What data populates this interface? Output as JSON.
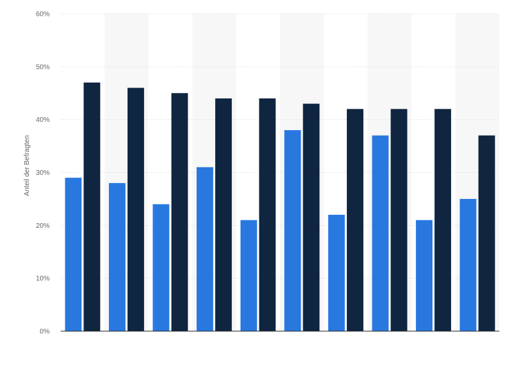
{
  "chart_data": {
    "type": "bar",
    "title": "",
    "xlabel": "",
    "ylabel": "Anteil der Befragten",
    "ylim": [
      0,
      60
    ],
    "yticks": [
      0,
      10,
      20,
      30,
      40,
      50,
      60
    ],
    "ytick_suffix": "%",
    "categories": [
      "",
      "",
      "",
      "",
      "",
      "",
      "",
      "",
      "",
      ""
    ],
    "grid": true,
    "alternating_bands": true,
    "series": [
      {
        "color": "#2878e0",
        "values": [
          29,
          28,
          24,
          31,
          21,
          38,
          22,
          37,
          21,
          25
        ]
      },
      {
        "color": "#0f2540",
        "values": [
          47,
          46,
          45,
          44,
          44,
          43,
          42,
          42,
          42,
          37
        ]
      }
    ]
  },
  "colors": {
    "band": "#f7f7f7",
    "grid": "#d8d8d8",
    "axis": "#2a2a2a",
    "tick_text": "#666666"
  }
}
